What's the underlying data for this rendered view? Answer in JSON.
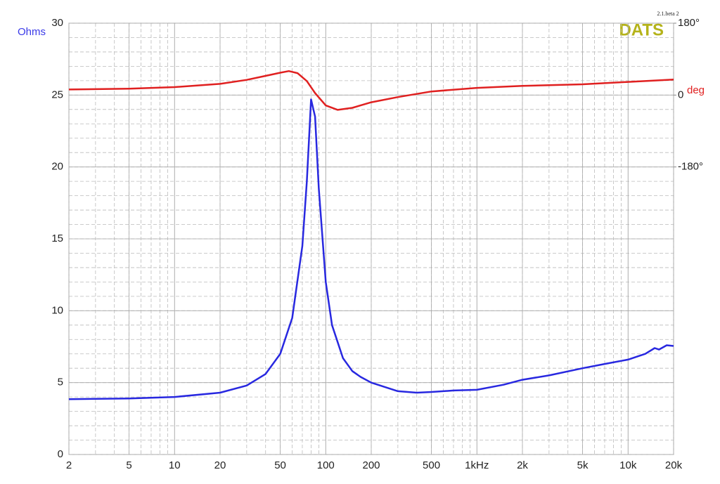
{
  "chart_data": {
    "type": "line",
    "log_x": true,
    "grid": true,
    "ylabel": "Ohms",
    "y2label": "deg",
    "annotations": [
      "DATS",
      "2.1.beta 2"
    ],
    "xlim": [
      2,
      20000
    ],
    "xticks": [
      2,
      5,
      10,
      20,
      50,
      100,
      200,
      500,
      {
        "value": 1000,
        "label": "1kHz"
      },
      {
        "value": 2000,
        "label": "2k"
      },
      {
        "value": 5000,
        "label": "5k"
      },
      {
        "value": 10000,
        "label": "10k"
      },
      {
        "value": 20000,
        "label": "20k"
      }
    ],
    "ylim": [
      0,
      30
    ],
    "yticks": [
      0,
      5,
      10,
      15,
      20,
      25,
      30
    ],
    "y2lim": [
      -900,
      180
    ],
    "y2ticks": [
      {
        "value": 180,
        "label": "180°"
      },
      0,
      {
        "value": -180,
        "label": "-180°"
      }
    ],
    "series": [
      {
        "color": "#2828e0",
        "x": [
          2,
          5,
          10,
          20,
          30,
          40,
          50,
          60,
          70,
          75,
          80,
          85,
          90,
          100,
          110,
          130,
          150,
          170,
          200,
          300,
          400,
          500,
          700,
          1000,
          1500,
          2000,
          3000,
          5000,
          7000,
          10000,
          13000,
          15000,
          16000,
          18000,
          20000
        ],
        "values": [
          3.85,
          3.9,
          4.0,
          4.3,
          4.8,
          5.6,
          7.0,
          9.5,
          14.5,
          19,
          24.7,
          23.5,
          18.5,
          12,
          9.0,
          6.7,
          5.8,
          5.4,
          5.0,
          4.4,
          4.3,
          4.35,
          4.45,
          4.5,
          4.85,
          5.2,
          5.5,
          6.0,
          6.3,
          6.6,
          7.0,
          7.4,
          7.3,
          7.6,
          7.55
        ]
      },
      {
        "color": "#e02020",
        "axis": "y2",
        "x": [
          2,
          5,
          10,
          20,
          30,
          40,
          50,
          57,
          65,
          75,
          85,
          100,
          120,
          150,
          200,
          300,
          500,
          1000,
          2000,
          5000,
          10000,
          20000
        ],
        "values": [
          14,
          16,
          20,
          28,
          38,
          48,
          56,
          60,
          55,
          35,
          5,
          -26,
          -37,
          -32,
          -18,
          -5,
          9,
          18,
          23,
          27,
          33,
          39
        ]
      }
    ]
  }
}
